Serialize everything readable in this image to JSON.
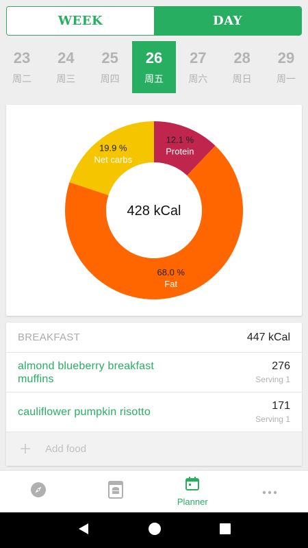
{
  "toggle": {
    "week_label": "WEEK",
    "day_label": "DAY",
    "selected": "day"
  },
  "dates": [
    {
      "day": "23",
      "weekday": "周二"
    },
    {
      "day": "24",
      "weekday": "周三"
    },
    {
      "day": "25",
      "weekday": "周四"
    },
    {
      "day": "26",
      "weekday": "周五",
      "active": true
    },
    {
      "day": "27",
      "weekday": "周六"
    },
    {
      "day": "28",
      "weekday": "周日"
    },
    {
      "day": "29",
      "weekday": "周一"
    }
  ],
  "chart_data": {
    "type": "pie",
    "center_label": "428 kCal",
    "slices": [
      {
        "label": "Protein",
        "value": 12.1,
        "value_label": "12.1 %",
        "color": "#c0254e"
      },
      {
        "label": "Fat",
        "value": 68.0,
        "value_label": "68.0 %",
        "color": "#ff6600"
      },
      {
        "label": "Net carbs",
        "value": 19.9,
        "value_label": "19.9 %",
        "color": "#f5c500"
      }
    ]
  },
  "meal": {
    "title": "BREAKFAST",
    "total": "447 kCal",
    "foods": [
      {
        "name": "almond blueberry breakfast muffins",
        "calories": "276",
        "serving": "Serving 1"
      },
      {
        "name": "cauliflower pumpkin risotto",
        "calories": "171",
        "serving": "Serving 1"
      }
    ],
    "add_label": "Add food"
  },
  "bottom_nav": {
    "items": [
      {
        "icon": "compass-icon",
        "label": ""
      },
      {
        "icon": "recipe-book-icon",
        "label": ""
      },
      {
        "icon": "calendar-icon",
        "label": "Planner",
        "active": true
      },
      {
        "icon": "more-icon",
        "label": ""
      }
    ]
  },
  "colors": {
    "accent": "#27ae60",
    "inactive_icon": "#b0b0b0"
  }
}
